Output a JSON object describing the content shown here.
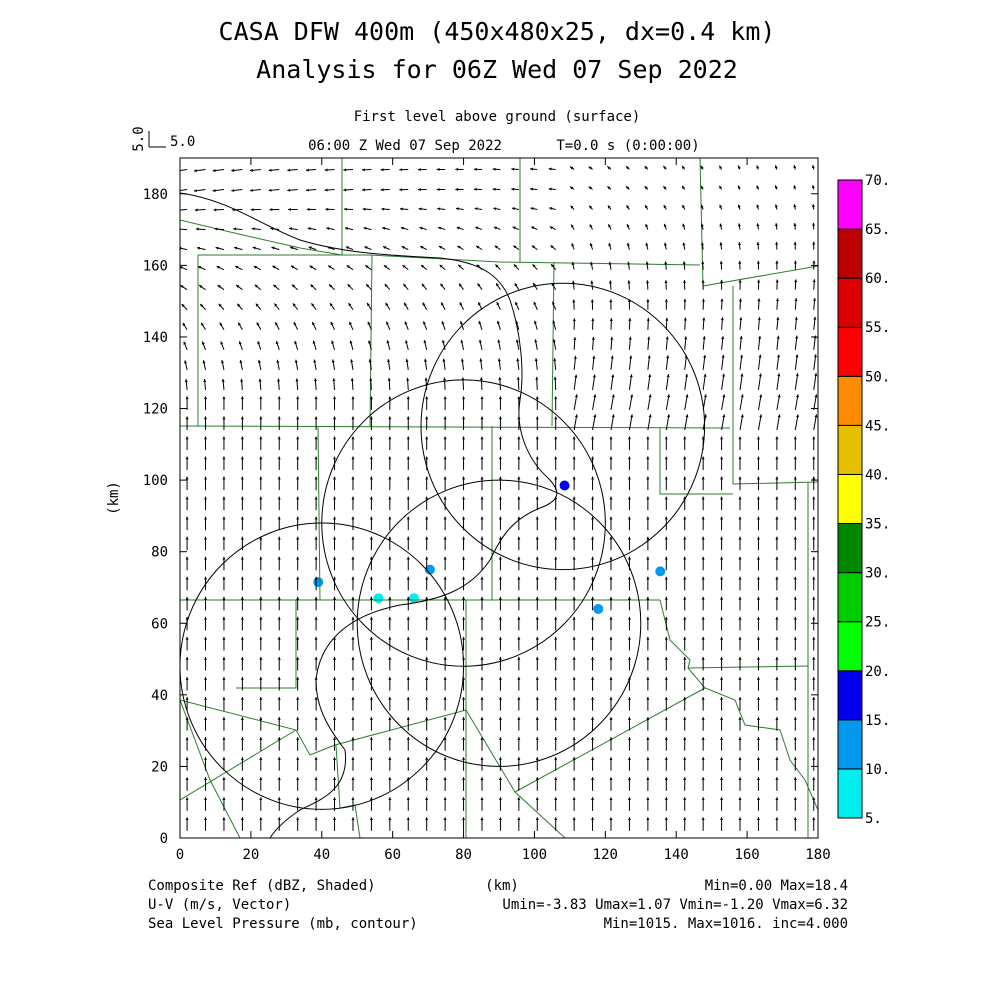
{
  "header": {
    "title_line1": "CASA DFW 400m (450x480x25, dx=0.4 km)",
    "title_line2": "Analysis for 06Z Wed 07 Sep 2022",
    "level_label": "First level above ground (surface)",
    "time_label": "06:00 Z Wed 07 Sep 2022",
    "integration_time": "T=0.0 s (0:00:00)",
    "vector_scale_vertical": "5.0",
    "vector_scale_horizontal": "5.0"
  },
  "footer": {
    "field1_label": "Composite Ref (dBZ, Shaded)",
    "field1_stats": "Min=0.00 Max=18.4",
    "field2_label": "U-V (m/s, Vector)",
    "field2_stats": "Umin=-3.83 Umax=1.07 Vmin=-1.20 Vmax=6.32",
    "field3_label": "Sea Level Pressure (mb, contour)",
    "field3_stats": "Min=1015. Max=1016. inc=4.000",
    "x_unit": "(km)"
  },
  "colors": {
    "vector": "#000000",
    "county_border": "#2e7d2e",
    "contour": "#000000"
  },
  "chart_data": {
    "type": "heatmap",
    "title": "CASA DFW 400m (450x480x25, dx=0.4 km)",
    "subtitle": "Analysis for 06Z Wed 07 Sep 2022",
    "xlabel": "(km)",
    "ylabel": "(km)",
    "xlim": [
      0,
      180
    ],
    "ylim": [
      0,
      190
    ],
    "x_ticks": [
      0,
      20,
      40,
      60,
      80,
      100,
      120,
      140,
      160,
      180
    ],
    "y_ticks": [
      0,
      20,
      40,
      60,
      80,
      100,
      120,
      140,
      160,
      180
    ],
    "grid": false,
    "colorbar": {
      "levels": [
        "5.",
        "10.",
        "15.",
        "20.",
        "25.",
        "30.",
        "35.",
        "40.",
        "45.",
        "50.",
        "55.",
        "60.",
        "65.",
        "70."
      ],
      "colors": [
        "#00eeee",
        "#0099ee",
        "#0000ee",
        "#00ff00",
        "#00cc00",
        "#008800",
        "#ffff00",
        "#e6c000",
        "#ff8c00",
        "#ff0000",
        "#dd0000",
        "#bb0000",
        "#ff00ff"
      ]
    },
    "reflectivity_echoes": [
      {
        "x": 108.5,
        "y": 98.5,
        "level": 15
      },
      {
        "x": 39,
        "y": 71.5,
        "level": 10
      },
      {
        "x": 70.5,
        "y": 75,
        "level": 10
      },
      {
        "x": 56,
        "y": 67,
        "level": 5
      },
      {
        "x": 66,
        "y": 67,
        "level": 5
      },
      {
        "x": 118,
        "y": 64,
        "level": 10
      },
      {
        "x": 135.5,
        "y": 74.5,
        "level": 10
      }
    ],
    "radar_rings": [
      {
        "cx": 108,
        "cy": 115,
        "r": 40
      },
      {
        "cx": 80,
        "cy": 88,
        "r": 40
      },
      {
        "cx": 40,
        "cy": 48,
        "r": 40
      },
      {
        "cx": 90,
        "cy": 60,
        "r": 40
      }
    ]
  }
}
